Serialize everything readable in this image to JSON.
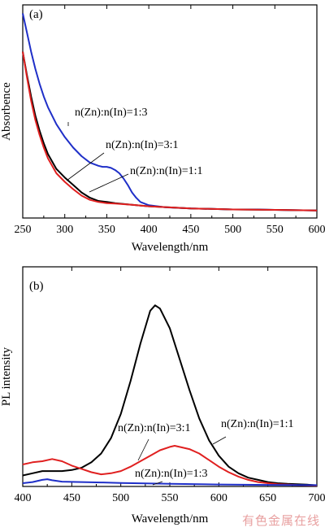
{
  "watermark": "有色金属在线",
  "chart_data": [
    {
      "type": "line",
      "panel_label": "(a)",
      "xlabel": "Wavelength/nm",
      "ylabel": "Absorbence",
      "xlim": [
        250,
        600
      ],
      "ylim": [
        0,
        1
      ],
      "xticks": [
        250,
        300,
        350,
        400,
        450,
        500,
        550,
        600
      ],
      "yticks_shown": false,
      "grid": false,
      "series": [
        {
          "name": "n(Zn):n(In)=1:3",
          "color": "#1f2fc8",
          "x": [
            250,
            255,
            260,
            265,
            270,
            275,
            280,
            290,
            300,
            310,
            320,
            330,
            340,
            345,
            350,
            355,
            360,
            365,
            370,
            375,
            380,
            385,
            390,
            400,
            420,
            450,
            500,
            530,
            550,
            600
          ],
          "y": [
            0.96,
            0.87,
            0.78,
            0.7,
            0.63,
            0.57,
            0.52,
            0.44,
            0.38,
            0.33,
            0.29,
            0.26,
            0.245,
            0.24,
            0.24,
            0.235,
            0.225,
            0.21,
            0.185,
            0.155,
            0.12,
            0.095,
            0.075,
            0.06,
            0.05,
            0.045,
            0.04,
            0.04,
            0.038,
            0.035
          ]
        },
        {
          "name": "n(Zn):n(In)=3:1",
          "color": "#000000",
          "x": [
            250,
            255,
            260,
            265,
            270,
            275,
            280,
            290,
            300,
            310,
            320,
            330,
            340,
            350,
            360,
            380,
            400,
            450,
            500,
            550,
            600
          ],
          "y": [
            0.78,
            0.67,
            0.57,
            0.48,
            0.41,
            0.35,
            0.3,
            0.23,
            0.19,
            0.155,
            0.12,
            0.095,
            0.08,
            0.075,
            0.07,
            0.062,
            0.055,
            0.045,
            0.04,
            0.038,
            0.035
          ]
        },
        {
          "name": "n(Zn):n(In)=1:1",
          "color": "#e02020",
          "x": [
            250,
            255,
            260,
            265,
            270,
            275,
            280,
            290,
            300,
            310,
            320,
            330,
            340,
            350,
            360,
            380,
            400,
            450,
            500,
            550,
            600
          ],
          "y": [
            0.78,
            0.66,
            0.55,
            0.46,
            0.39,
            0.33,
            0.28,
            0.21,
            0.17,
            0.135,
            0.105,
            0.085,
            0.075,
            0.07,
            0.068,
            0.062,
            0.055,
            0.045,
            0.04,
            0.038,
            0.035
          ]
        }
      ],
      "annotations": [
        {
          "text": "n(Zn):n(In)=1:3",
          "target_series": 0
        },
        {
          "text": "n(Zn):n(In)=3:1",
          "target_series": 1
        },
        {
          "text": "n(Zn):n(In)=1:1",
          "target_series": 2
        }
      ]
    },
    {
      "type": "line",
      "panel_label": "(b)",
      "xlabel": "Wavelength/nm",
      "ylabel": "PL intensity",
      "xlim": [
        400,
        700
      ],
      "ylim": [
        0,
        1
      ],
      "xticks": [
        400,
        450,
        500,
        550,
        600,
        650,
        700
      ],
      "yticks_shown": false,
      "grid": false,
      "series": [
        {
          "name": "n(Zn):n(In)=3:1",
          "color": "#000000",
          "x": [
            400,
            410,
            420,
            430,
            440,
            450,
            460,
            470,
            480,
            490,
            500,
            510,
            520,
            530,
            535,
            540,
            550,
            560,
            570,
            580,
            590,
            600,
            610,
            620,
            630,
            640,
            650,
            660,
            670,
            680,
            690,
            700
          ],
          "y": [
            0.05,
            0.06,
            0.07,
            0.07,
            0.07,
            0.075,
            0.085,
            0.11,
            0.15,
            0.22,
            0.33,
            0.48,
            0.65,
            0.8,
            0.825,
            0.81,
            0.72,
            0.58,
            0.44,
            0.31,
            0.21,
            0.14,
            0.09,
            0.06,
            0.04,
            0.03,
            0.02,
            0.015,
            0.012,
            0.01,
            0.008,
            0.005
          ]
        },
        {
          "name": "n(Zn):n(In)=1:1",
          "color": "#e02020",
          "x": [
            400,
            410,
            420,
            430,
            440,
            450,
            460,
            470,
            480,
            490,
            500,
            510,
            520,
            530,
            540,
            550,
            555,
            560,
            570,
            580,
            590,
            600,
            610,
            620,
            630,
            640,
            650,
            660,
            670,
            680,
            690,
            700
          ],
          "y": [
            0.1,
            0.11,
            0.115,
            0.125,
            0.115,
            0.095,
            0.08,
            0.065,
            0.055,
            0.06,
            0.07,
            0.09,
            0.115,
            0.14,
            0.165,
            0.18,
            0.185,
            0.18,
            0.17,
            0.15,
            0.12,
            0.09,
            0.065,
            0.045,
            0.03,
            0.02,
            0.015,
            0.01,
            0.008,
            0.006,
            0.005,
            0.004
          ]
        },
        {
          "name": "n(Zn):n(In)=1:3",
          "color": "#1f2fc8",
          "x": [
            400,
            410,
            420,
            425,
            430,
            440,
            460,
            480,
            500,
            550,
            600,
            650,
            700
          ],
          "y": [
            0.015,
            0.02,
            0.03,
            0.033,
            0.028,
            0.022,
            0.02,
            0.018,
            0.016,
            0.012,
            0.009,
            0.007,
            0.006
          ]
        }
      ],
      "annotations": [
        {
          "text": "n(Zn):n(In)=3:1",
          "target_series": 0
        },
        {
          "text": "n(Zn):n(In)=1:1",
          "target_series": 1
        },
        {
          "text": "n(Zn):n(In)=1:3",
          "target_series": 2
        }
      ]
    }
  ]
}
